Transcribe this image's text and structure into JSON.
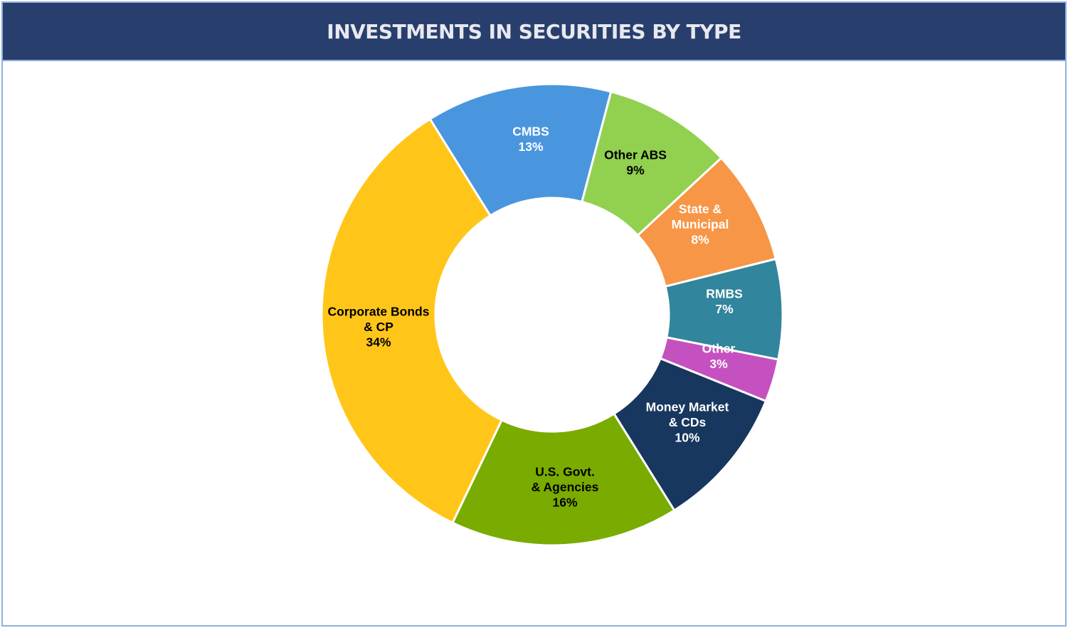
{
  "chart_data": {
    "type": "pie",
    "variant": "donut",
    "title": "INVESTMENTS IN SECURITIES BY TYPE",
    "legend": "none",
    "slices": [
      {
        "label": [
          "CMBS"
        ],
        "value": 13,
        "display": "13%",
        "color": "#4A96DE",
        "label_color": "#FFFFFF"
      },
      {
        "label": [
          "Other ABS"
        ],
        "value": 9,
        "display": "9%",
        "color": "#92D050",
        "label_color": "#000000"
      },
      {
        "label": [
          "State &",
          "Municipal"
        ],
        "value": 8,
        "display": "8%",
        "color": "#F79646",
        "label_color": "#FFFFFF"
      },
      {
        "label": [
          "RMBS"
        ],
        "value": 7,
        "display": "7%",
        "color": "#31859C",
        "label_color": "#FFFFFF"
      },
      {
        "label": [
          "Other"
        ],
        "value": 3,
        "display": "3%",
        "color": "#C550C0",
        "label_color": "#FFFFFF"
      },
      {
        "label": [
          "Money Market",
          "& CDs"
        ],
        "value": 10,
        "display": "10%",
        "color": "#17375E",
        "label_color": "#FFFFFF"
      },
      {
        "label": [
          "U.S. Govt.",
          "& Agencies"
        ],
        "value": 16,
        "display": "16%",
        "color": "#7AAB00",
        "label_color": "#000000"
      },
      {
        "label": [
          "Corporate Bonds",
          "& CP"
        ],
        "value": 34,
        "display": "34%",
        "color": "#FFC619",
        "label_color": "#000000"
      }
    ]
  },
  "colors": {
    "header_bg": "#283F6E",
    "border": "#8DB0DC"
  }
}
